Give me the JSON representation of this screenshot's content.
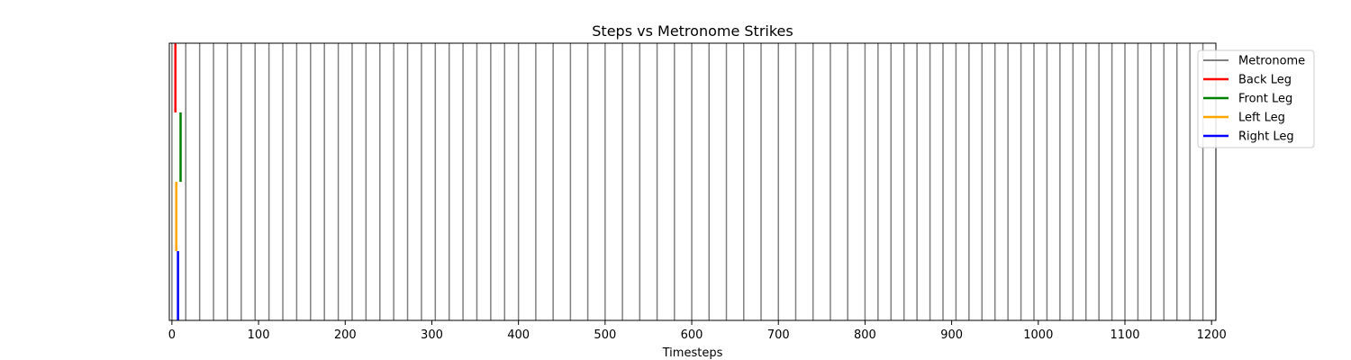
{
  "chart_data": {
    "type": "event-lines",
    "title": "Steps vs Metronome Strikes",
    "xlabel": "Timesteps",
    "ylabel": "",
    "xlim": [
      -3,
      1205
    ],
    "xticks": [
      0,
      100,
      200,
      300,
      400,
      500,
      600,
      700,
      800,
      900,
      1000,
      1100,
      1200
    ],
    "xtick_labels": [
      "0",
      "100",
      "200",
      "300",
      "400",
      "500",
      "600",
      "700",
      "800",
      "900",
      "1000",
      "1100",
      "1200"
    ],
    "grid": false,
    "legend_position": "top-right",
    "metronome": {
      "name": "Metronome",
      "color": "#808080",
      "strikes": [
        0,
        16,
        32,
        48,
        64,
        80,
        96,
        112,
        128,
        144,
        160,
        176,
        192,
        208,
        224,
        240,
        256,
        272,
        288,
        304,
        320,
        336,
        352,
        368,
        384,
        400,
        420,
        440,
        460,
        480,
        500,
        520,
        540,
        560,
        580,
        600,
        620,
        640,
        660,
        680,
        700,
        720,
        740,
        760,
        780,
        800,
        815,
        830,
        845,
        860,
        875,
        890,
        905,
        920,
        935,
        950,
        965,
        980,
        995,
        1010,
        1025,
        1040,
        1055,
        1070,
        1085,
        1100,
        1115,
        1130,
        1145,
        1160,
        1175,
        1190
      ]
    },
    "series": [
      {
        "name": "Back Leg",
        "color": "#ff0000",
        "steps": [
          4
        ]
      },
      {
        "name": "Front Leg",
        "color": "#008000",
        "steps": [
          10
        ]
      },
      {
        "name": "Left Leg",
        "color": "#ffa500",
        "steps": [
          5
        ]
      },
      {
        "name": "Right Leg",
        "color": "#0000ff",
        "steps": [
          7
        ]
      }
    ]
  }
}
